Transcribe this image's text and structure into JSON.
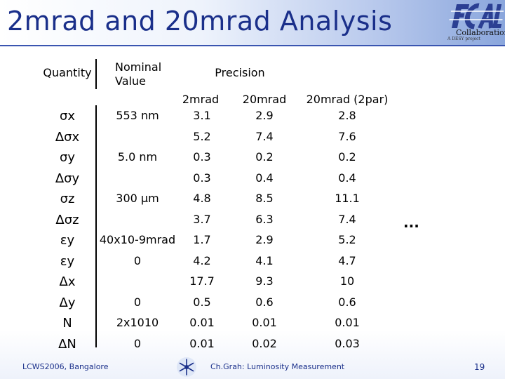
{
  "slide": {
    "title": "2mrad and 20mrad Analysis",
    "logo_text": "Collaboration",
    "logo_sub": "A DESY project",
    "ellipsis": "...",
    "footer": {
      "left": "LCWS2006, Bangalore",
      "center": "Ch.Grah: Luminosity Measurement",
      "page": "19"
    }
  },
  "table": {
    "headers": {
      "quantity": "Quantity",
      "nominal_line1": "Nominal",
      "nominal_line2": "Value",
      "precision": "Precision"
    },
    "subheaders": [
      "2mrad",
      "20mrad",
      "20mrad (2par)"
    ],
    "rows": [
      {
        "q": "σx",
        "nominal": "553 nm",
        "v1": "3.1",
        "v2": "2.9",
        "v3": "2.8"
      },
      {
        "q": "Δσx",
        "nominal": "",
        "v1": "5.2",
        "v2": "7.4",
        "v3": "7.6"
      },
      {
        "q": "σy",
        "nominal": "5.0 nm",
        "v1": "0.3",
        "v2": "0.2",
        "v3": "0.2"
      },
      {
        "q": "Δσy",
        "nominal": "",
        "v1": "0.3",
        "v2": "0.4",
        "v3": "0.4"
      },
      {
        "q": "σz",
        "nominal": "300 μm",
        "v1": "4.8",
        "v2": "8.5",
        "v3": "11.1"
      },
      {
        "q": "Δσz",
        "nominal": "",
        "v1": "3.7",
        "v2": "6.3",
        "v3": "7.4"
      },
      {
        "q": "εy",
        "nominal": "40x10-9mrad",
        "v1": "1.7",
        "v2": "2.9",
        "v3": "5.2"
      },
      {
        "q": "εy",
        "nominal": "0",
        "v1": "4.2",
        "v2": "4.1",
        "v3": "4.7"
      },
      {
        "q": "Δx",
        "nominal": "",
        "v1": "17.7",
        "v2": "9.3",
        "v3": "10"
      },
      {
        "q": "Δy",
        "nominal": "0",
        "v1": "0.5",
        "v2": "0.6",
        "v3": "0.6"
      },
      {
        "q": "N",
        "nominal": "2x1010",
        "v1": "0.01",
        "v2": "0.01",
        "v3": "0.01"
      },
      {
        "q": "ΔN",
        "nominal": "0",
        "v1": "0.01",
        "v2": "0.02",
        "v3": "0.03"
      }
    ]
  }
}
